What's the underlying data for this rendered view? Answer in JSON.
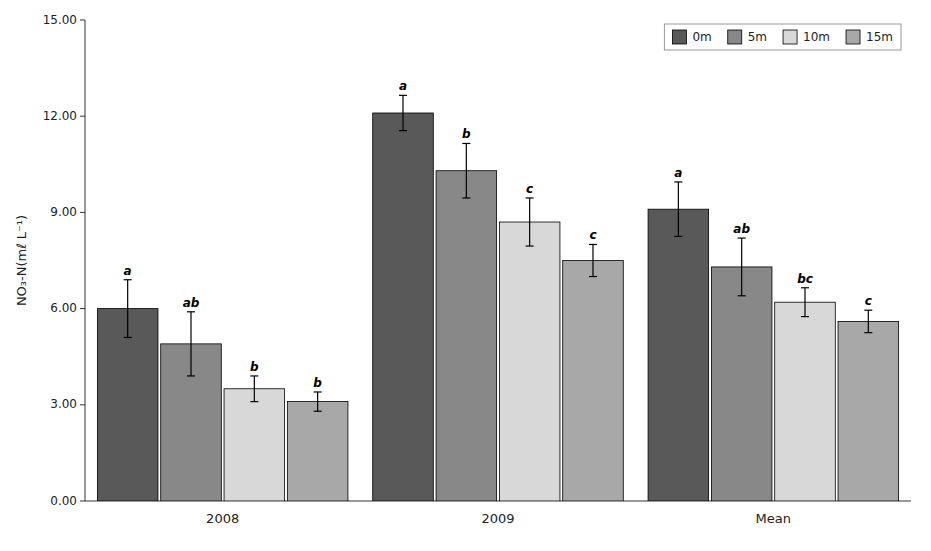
{
  "chart_data": {
    "type": "bar",
    "y_label": "NO₃-N(mℓ L⁻¹)",
    "categories": [
      "2008",
      "2009",
      "Mean"
    ],
    "series": [
      {
        "name": "0m",
        "color": "#595959",
        "values": [
          6.0,
          12.1,
          9.1
        ],
        "errors": [
          0.9,
          0.55,
          0.85
        ],
        "annotations": [
          "a",
          "a",
          "a"
        ]
      },
      {
        "name": "5m",
        "color": "#888888",
        "values": [
          4.9,
          10.3,
          7.3
        ],
        "errors": [
          1.0,
          0.85,
          0.9
        ],
        "annotations": [
          "ab",
          "b",
          "ab"
        ]
      },
      {
        "name": "10m",
        "color": "#d8d8d8",
        "values": [
          3.5,
          8.7,
          6.2
        ],
        "errors": [
          0.4,
          0.75,
          0.45
        ],
        "annotations": [
          "b",
          "c",
          "bc"
        ]
      },
      {
        "name": "15m",
        "color": "#a8a8a8",
        "values": [
          3.1,
          7.5,
          5.6
        ],
        "errors": [
          0.3,
          0.5,
          0.35
        ],
        "annotations": [
          "b",
          "c",
          "c"
        ]
      }
    ],
    "ylim": [
      0,
      15.0
    ],
    "yticks": [
      {
        "value": 0.0,
        "label": "0.00"
      },
      {
        "value": 3.0,
        "label": "3.00"
      },
      {
        "value": 6.0,
        "label": "6.00"
      },
      {
        "value": 9.0,
        "label": "9.00"
      },
      {
        "value": 12.0,
        "label": "12.00"
      },
      {
        "value": 15.0,
        "label": "15.00"
      }
    ],
    "grid": false,
    "legend": "upper right"
  }
}
